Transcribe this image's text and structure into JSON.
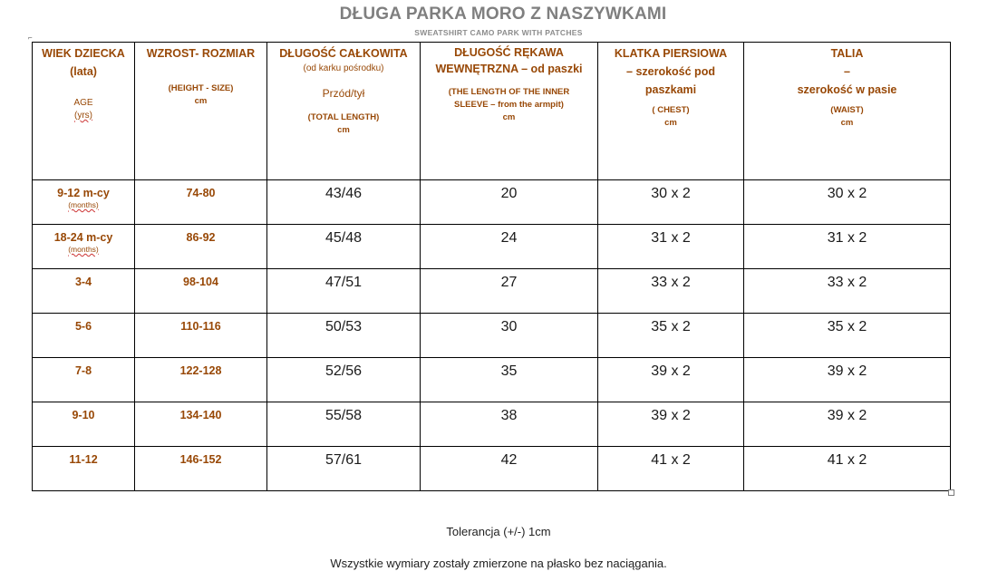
{
  "title": "DŁUGA PARKA MORO Z NASZYWKAMI",
  "subtitle": "SWEATSHIRT CAMO PARK WITH PATCHES",
  "header": {
    "age": {
      "main": "WIEK DZIECKA (lata)",
      "sub": "AGE",
      "unit": "(yrs)"
    },
    "height": {
      "main": "WZROST- ROZMIAR",
      "sub": "(HEIGHT - SIZE)",
      "unit": "cm"
    },
    "length": {
      "main": "DŁUGOŚĆ CAŁKOWITA",
      "note": "(od karku pośrodku)",
      "front_back": "Przód/tył",
      "sub": "(TOTAL LENGTH)",
      "unit": "cm"
    },
    "sleeve": {
      "main1": "DŁUGOŚĆ RĘKAWA",
      "main2": "WEWNĘTRZNA – od paszki",
      "sub": "(THE LENGTH OF THE INNER SLEEVE – from the armpit)",
      "unit": "cm"
    },
    "chest": {
      "main1": "KLATKA PIERSIOWA",
      "main2": "– szerokość pod paszkami",
      "sub": "( CHEST)",
      "unit": "cm"
    },
    "waist": {
      "main1": "TALIA",
      "main2": "–",
      "main3": "szerokość w pasie",
      "sub": "(WAIST)",
      "unit": "cm"
    }
  },
  "rows": [
    {
      "age": "9-12 m-cy",
      "age_note": "(months)",
      "size": "74-80",
      "length": "43/46",
      "sleeve": "20",
      "chest": "30 x 2",
      "waist": "30 x 2"
    },
    {
      "age": "18-24 m-cy",
      "age_note": "(months)",
      "size": "86-92",
      "length": "45/48",
      "sleeve": "24",
      "chest": "31 x 2",
      "waist": "31 x 2"
    },
    {
      "age": "3-4",
      "size": "98-104",
      "length": "47/51",
      "sleeve": "27",
      "chest": "33 x 2",
      "waist": "33 x 2"
    },
    {
      "age": "5-6",
      "size": "110-116",
      "length": "50/53",
      "sleeve": "30",
      "chest": "35 x 2",
      "waist": "35 x 2"
    },
    {
      "age": "7-8",
      "size": "122-128",
      "length": "52/56",
      "sleeve": "35",
      "chest": "39 x 2",
      "waist": "39 x 2"
    },
    {
      "age": "9-10",
      "size": "134-140",
      "length": "55/58",
      "sleeve": "38",
      "chest": "39 x 2",
      "waist": "39 x 2"
    },
    {
      "age": "11-12",
      "size": "146-152",
      "length": "57/61",
      "sleeve": "42",
      "chest": "41 x 2",
      "waist": "41 x 2"
    }
  ],
  "tolerance": "Tolerancja (+/-) 1cm",
  "note": "Wszystkie wymiary zostały zmierzone na płasko bez naciągania.",
  "colors": {
    "header_text": "#984806",
    "title": "#7f7f7f",
    "border": "#000000"
  }
}
